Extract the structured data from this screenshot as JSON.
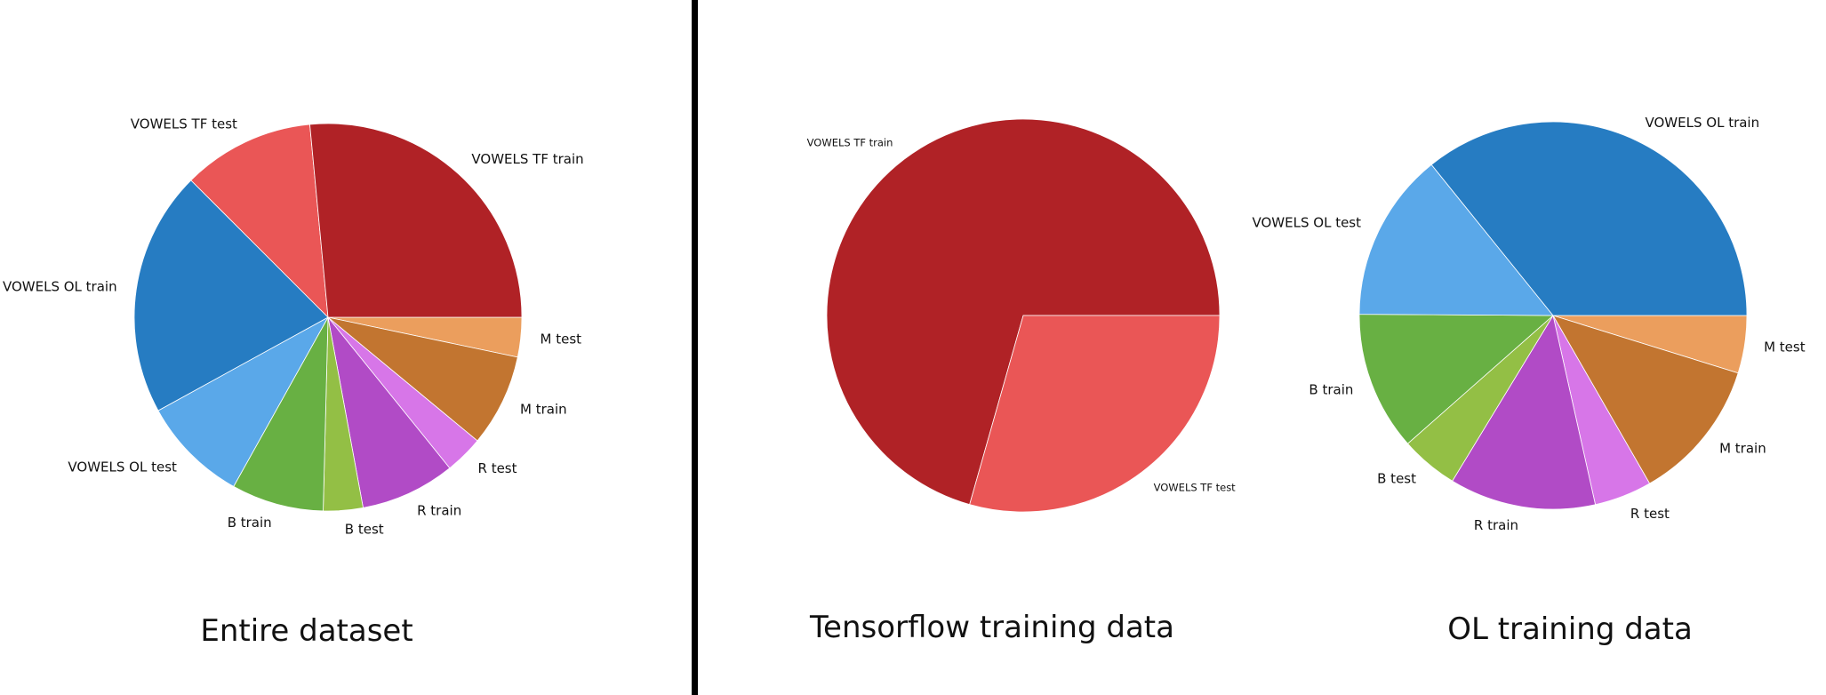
{
  "colors": {
    "divider": "#000000",
    "slice_stroke": "#ffffff",
    "vowels_tf_train": "#b02226",
    "vowels_tf_test": "#ea5656",
    "vowels_ol_train": "#267cc2",
    "vowels_ol_test": "#5aa8e9",
    "b_train": "#68b043",
    "b_test": "#93bf45",
    "r_train": "#b14bc6",
    "r_test": "#d776e8",
    "m_train": "#c27530",
    "m_test": "#eb9e5d"
  },
  "chart_data": [
    {
      "type": "pie",
      "title": "Entire dataset",
      "start_angle_deg": 0,
      "direction": "clockwise-from-east",
      "slices": [
        {
          "label": "M test",
          "value": 3.3,
          "color_key": "m_test"
        },
        {
          "label": "M train",
          "value": 7.7,
          "color_key": "m_train"
        },
        {
          "label": "R test",
          "value": 3.2,
          "color_key": "r_test"
        },
        {
          "label": "R train",
          "value": 7.9,
          "color_key": "r_train"
        },
        {
          "label": "B test",
          "value": 3.3,
          "color_key": "b_test"
        },
        {
          "label": "B train",
          "value": 7.7,
          "color_key": "b_train"
        },
        {
          "label": "VOWELS OL test",
          "value": 8.9,
          "color_key": "vowels_ol_test"
        },
        {
          "label": "VOWELS OL train",
          "value": 20.5,
          "color_key": "vowels_ol_train"
        },
        {
          "label": "VOWELS TF test",
          "value": 11.0,
          "color_key": "vowels_tf_test"
        },
        {
          "label": "VOWELS TF train",
          "value": 26.5,
          "color_key": "vowels_tf_train"
        }
      ]
    },
    {
      "type": "pie",
      "title": "Tensorflow training data",
      "start_angle_deg": 0,
      "direction": "counterclockwise-from-east",
      "slices": [
        {
          "label": "VOWELS TF train",
          "value": 70.6,
          "color_key": "vowels_tf_train"
        },
        {
          "label": "VOWELS TF test",
          "value": 29.4,
          "color_key": "vowels_tf_test"
        }
      ]
    },
    {
      "type": "pie",
      "title": "OL training data",
      "start_angle_deg": 0,
      "direction": "clockwise-from-east",
      "slices": [
        {
          "label": "M test",
          "value": 4.8,
          "color_key": "m_test"
        },
        {
          "label": "M train",
          "value": 11.9,
          "color_key": "m_train"
        },
        {
          "label": "R test",
          "value": 4.8,
          "color_key": "r_test"
        },
        {
          "label": "R train",
          "value": 12.2,
          "color_key": "r_train"
        },
        {
          "label": "B test",
          "value": 4.8,
          "color_key": "b_test"
        },
        {
          "label": "B train",
          "value": 11.6,
          "color_key": "b_train"
        },
        {
          "label": "VOWELS OL test",
          "value": 14.1,
          "color_key": "vowels_ol_test"
        },
        {
          "label": "VOWELS OL train",
          "value": 35.8,
          "color_key": "vowels_ol_train"
        }
      ]
    }
  ]
}
